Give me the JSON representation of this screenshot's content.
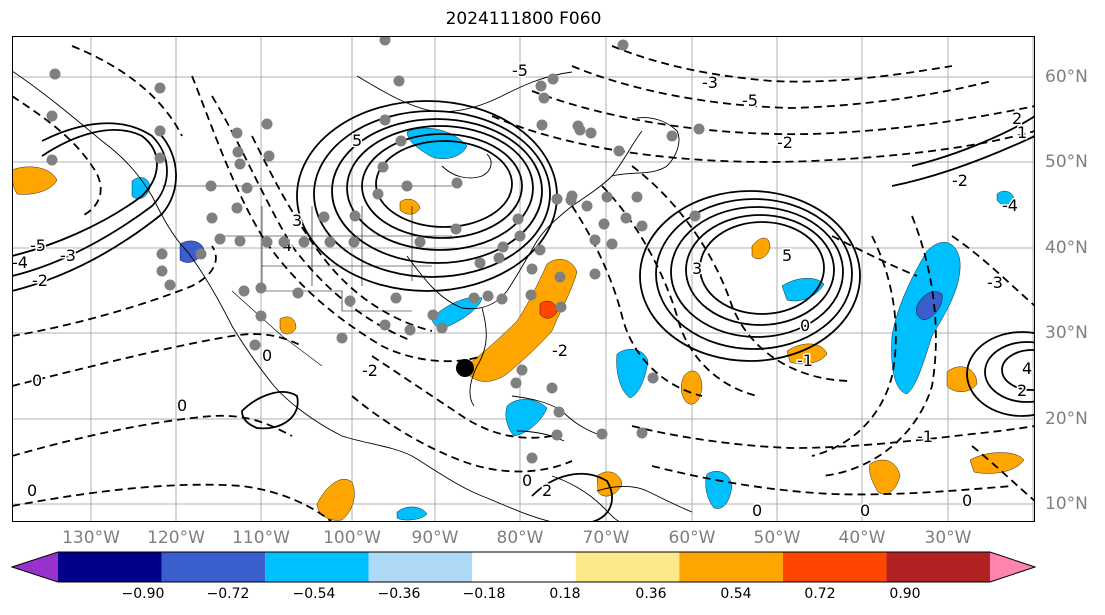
{
  "title": "2024111800 F060",
  "map": {
    "projection": "equirectangular",
    "lon_range": [
      -142,
      -21
    ],
    "lat_range": [
      7.5,
      65
    ],
    "graticule": true,
    "lon_labels": [
      "130°W",
      "120°W",
      "110°W",
      "100°W",
      "90°W",
      "80°W",
      "70°W",
      "60°W",
      "50°W",
      "40°W",
      "30°W"
    ],
    "lat_labels": [
      "60°N",
      "50°N",
      "40°N",
      "30°N",
      "20°N",
      "10°N"
    ],
    "contour_labels": [
      "-5",
      "-4",
      "-3",
      "-2",
      "-1",
      "0",
      "1",
      "2",
      "3",
      "4",
      "5"
    ],
    "colors": {
      "contour": "#000000",
      "coastline": "#000000",
      "grid": "#b0b0b0",
      "station_marker": "#808080",
      "center_marker": "#000000"
    }
  },
  "colorbar": {
    "ticks": [
      "−0.90",
      "−0.72",
      "−0.54",
      "−0.36",
      "−0.18",
      "0.18",
      "0.36",
      "0.54",
      "0.72",
      "0.90"
    ],
    "bins": [
      {
        "min": null,
        "max": -0.9,
        "color": "#9932cc"
      },
      {
        "min": -0.9,
        "max": -0.72,
        "color": "#00008b"
      },
      {
        "min": -0.72,
        "max": -0.54,
        "color": "#3a5fcd"
      },
      {
        "min": -0.54,
        "max": -0.36,
        "color": "#00bfff"
      },
      {
        "min": -0.36,
        "max": -0.18,
        "color": "#add8f6"
      },
      {
        "min": -0.18,
        "max": 0.18,
        "color": "#ffffff"
      },
      {
        "min": 0.18,
        "max": 0.36,
        "color": "#fde88a"
      },
      {
        "min": 0.36,
        "max": 0.54,
        "color": "#ffa500"
      },
      {
        "min": 0.54,
        "max": 0.72,
        "color": "#ff4500"
      },
      {
        "min": 0.72,
        "max": 0.9,
        "color": "#b22222"
      },
      {
        "min": 0.9,
        "max": null,
        "color": "#ff85b0"
      }
    ]
  }
}
